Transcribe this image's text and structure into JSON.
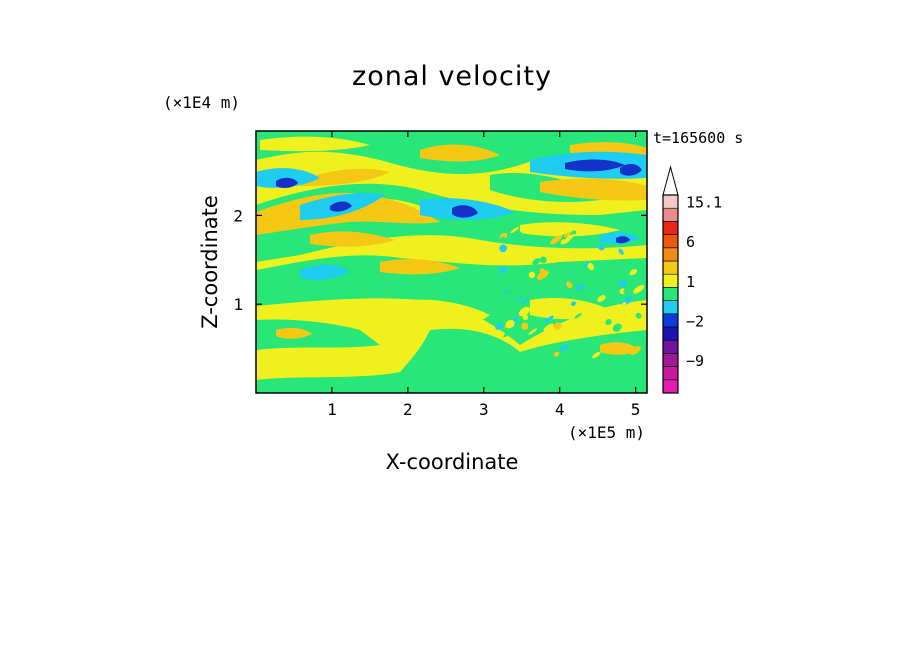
{
  "chart_data": {
    "type": "heatmap",
    "title": "zonal velocity",
    "xlabel": "X-coordinate",
    "ylabel": "Z-coordinate",
    "x_scale_label": "(×1E5 m)",
    "z_scale_label": "(×1E4 m)",
    "time_label": "t=165600 s",
    "xlim": [
      0,
      5.15
    ],
    "zlim": [
      0,
      2.95
    ],
    "x_ticks": [
      "1",
      "2",
      "3",
      "4",
      "5"
    ],
    "z_ticks": [
      "1",
      "2"
    ],
    "colorbar": {
      "labels": [
        "15.1",
        "6",
        "1",
        "−2",
        "−9"
      ],
      "label_values": [
        15.1,
        6,
        1,
        -2,
        -9
      ],
      "levels": [
        {
          "value": -15,
          "color": "#e61ab4"
        },
        {
          "value": -12,
          "color": "#c81aa0"
        },
        {
          "value": -9,
          "color": "#a01a96"
        },
        {
          "value": -6,
          "color": "#6e14a0"
        },
        {
          "value": -4,
          "color": "#1e14b4"
        },
        {
          "value": -2,
          "color": "#0a3cdc"
        },
        {
          "value": -1,
          "color": "#1ecdf0"
        },
        {
          "value": 0,
          "color": "#28e678"
        },
        {
          "value": 1,
          "color": "#f0f01e"
        },
        {
          "value": 2,
          "color": "#f5c814"
        },
        {
          "value": 4,
          "color": "#f08c14"
        },
        {
          "value": 6,
          "color": "#eb5a0a"
        },
        {
          "value": 9,
          "color": "#e62814"
        },
        {
          "value": 12,
          "color": "#eb8c8c"
        },
        {
          "value": 15.1,
          "color": "#f5c8c8"
        }
      ]
    },
    "palette": {
      "yellow": "#f0f01e",
      "green": "#28e678",
      "orange": "#f5c814",
      "cyan": "#1ecdf0",
      "blue": "#1432c8"
    }
  }
}
